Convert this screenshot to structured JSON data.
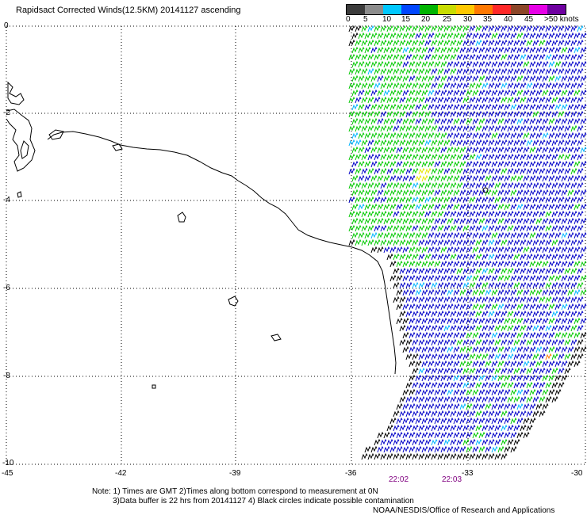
{
  "title": "Rapidsact Corrected Winds(12.5KM) 20141127 ascending",
  "legend": {
    "labels": [
      "0",
      "5",
      "10",
      "15",
      "20",
      "25",
      "30",
      "35",
      "40",
      "45",
      ">50 knots"
    ],
    "colors": [
      "#3c3c3c",
      "#8c8c8c",
      "#00c8ff",
      "#0046ff",
      "#00b400",
      "#c8dc00",
      "#ffc800",
      "#ff7800",
      "#ff2828",
      "#8c4628",
      "#e600e6",
      "#6e00a0"
    ]
  },
  "axes": {
    "lat_labels": [
      "0",
      "-2",
      "-4",
      "-6",
      "-8",
      "-10"
    ],
    "lon_labels": [
      "-45",
      "-42",
      "-39",
      "-36",
      "-33",
      "-30"
    ]
  },
  "times": [
    "22:02",
    "22:03"
  ],
  "notes": {
    "line1": "Note: 1) Times are GMT 2)Times along bottom correspond to measurement at 0N",
    "line2": "3)Data buffer is 22 hrs from 20141127 4) Black circles indicate possible contamination",
    "line3": "NOAA/NESDIS/Office of Research and Applications"
  },
  "colors": {
    "barb_green": "#00c800",
    "barb_blue": "#0000c8",
    "barb_cyan": "#00b4ff",
    "barb_black": "#000000",
    "barb_yellow": "#e6e600",
    "barb_orange": "#ff7800",
    "time_label": "#800080"
  }
}
